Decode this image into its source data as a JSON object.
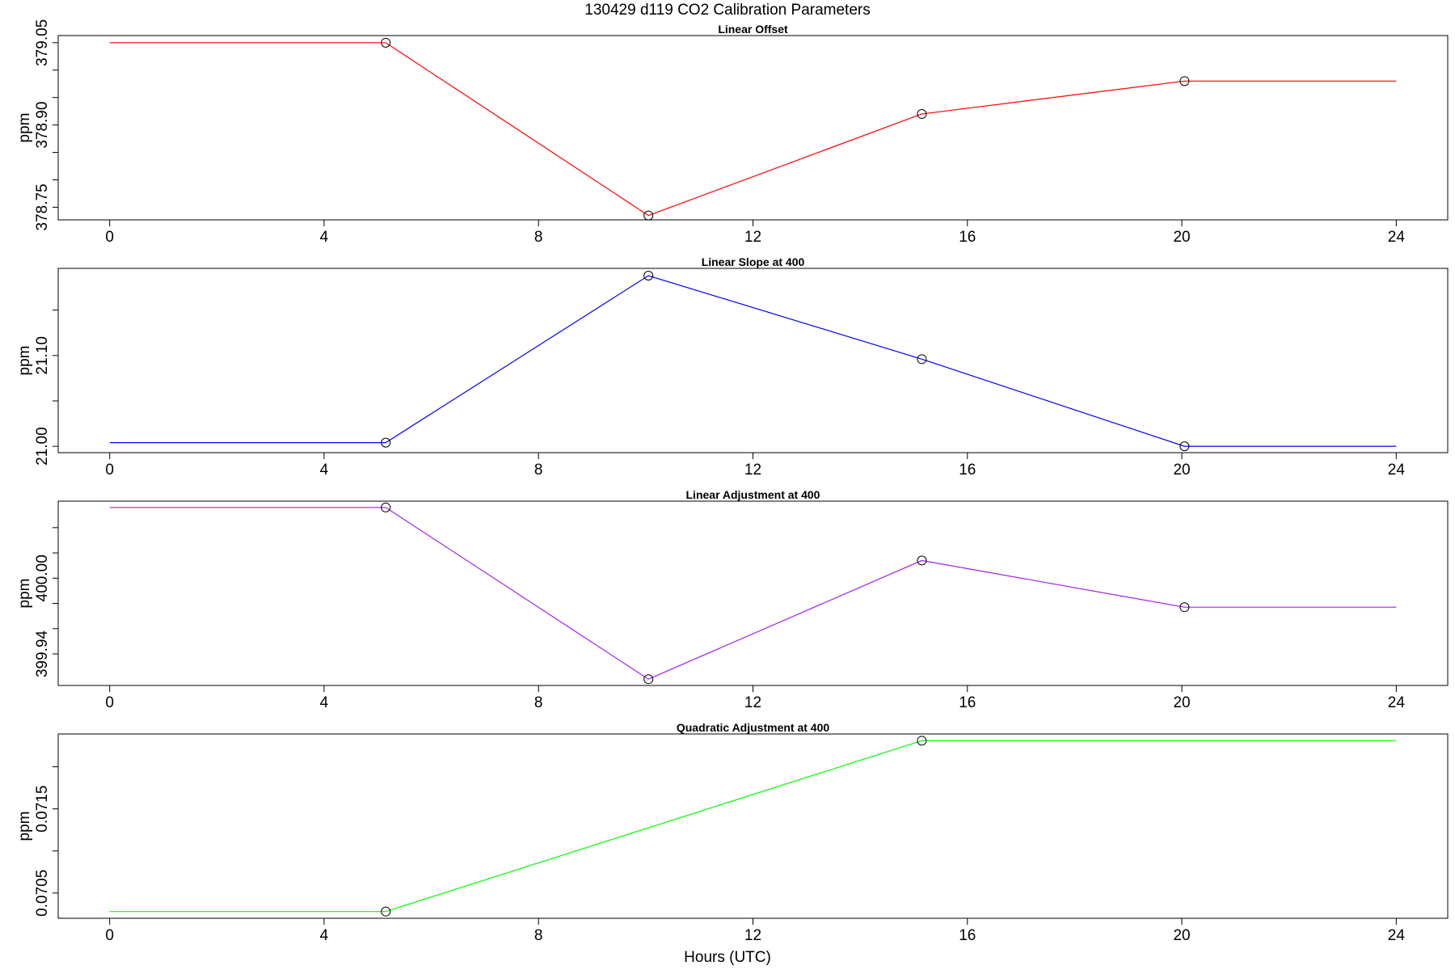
{
  "figure": {
    "title": "130429   d119   CO2 Calibration Parameters",
    "xlabel": "Hours (UTC)"
  },
  "chart_data": [
    {
      "type": "line",
      "title": "Linear Offset",
      "ylabel": "ppm",
      "color": "#ff0000",
      "x": [
        0,
        5.15,
        10.05,
        15.15,
        20.05,
        24
      ],
      "y": [
        379.05,
        379.05,
        378.735,
        378.92,
        378.98,
        378.98
      ],
      "markers": [
        false,
        true,
        true,
        true,
        true,
        false
      ],
      "xlim": [
        -0.96,
        24.96
      ],
      "ylim": [
        378.727,
        379.063
      ],
      "xticks": [
        0,
        4,
        8,
        12,
        16,
        20,
        24
      ],
      "xtick_labels": [
        "0",
        "4",
        "8",
        "12",
        "16",
        "20",
        "24"
      ],
      "yticks": [
        378.75,
        378.8,
        378.85,
        378.9,
        378.95,
        379.0,
        379.05
      ],
      "ytick_labels": [
        "378.75",
        "",
        "",
        "378.90",
        "",
        "",
        "379.05"
      ]
    },
    {
      "type": "line",
      "title": "Linear Slope at 400",
      "ylabel": "ppm",
      "color": "#0000ff",
      "x": [
        0,
        5.15,
        10.05,
        15.15,
        20.05,
        24
      ],
      "y": [
        21.004,
        21.004,
        21.188,
        21.096,
        21.0,
        21.0
      ],
      "markers": [
        false,
        true,
        true,
        true,
        true,
        false
      ],
      "xlim": [
        -0.96,
        24.96
      ],
      "ylim": [
        20.993,
        21.196
      ],
      "xticks": [
        0,
        4,
        8,
        12,
        16,
        20,
        24
      ],
      "xtick_labels": [
        "0",
        "4",
        "8",
        "12",
        "16",
        "20",
        "24"
      ],
      "yticks": [
        21.0,
        21.05,
        21.1,
        21.15
      ],
      "ytick_labels": [
        "21.00",
        "",
        "21.10",
        ""
      ]
    },
    {
      "type": "line",
      "title": "Linear Adjustment at 400",
      "ylabel": "ppm",
      "color": "#a020f0",
      "x": [
        0,
        5.15,
        10.05,
        15.15,
        20.05,
        24
      ],
      "y": [
        400.056,
        400.056,
        399.92,
        400.014,
        399.977,
        399.977
      ],
      "markers": [
        false,
        true,
        true,
        true,
        true,
        false
      ],
      "xlim": [
        -0.96,
        24.96
      ],
      "ylim": [
        399.915,
        400.061
      ],
      "xticks": [
        0,
        4,
        8,
        12,
        16,
        20,
        24
      ],
      "xtick_labels": [
        "0",
        "4",
        "8",
        "12",
        "16",
        "20",
        "24"
      ],
      "yticks": [
        399.94,
        399.96,
        399.98,
        400.0,
        400.02,
        400.04
      ],
      "ytick_labels": [
        "399.94",
        "",
        "",
        "400.00",
        "",
        ""
      ]
    },
    {
      "type": "line",
      "title": "Quadratic Adjustment at 400",
      "ylabel": "ppm",
      "color": "#00ff00",
      "x": [
        0,
        5.15,
        15.15,
        24
      ],
      "y": [
        0.07028,
        0.07028,
        0.07231,
        0.07231
      ],
      "markers": [
        false,
        true,
        true,
        false
      ],
      "xlim": [
        -0.96,
        24.96
      ],
      "ylim": [
        0.0702,
        0.07239
      ],
      "xticks": [
        0,
        4,
        8,
        12,
        16,
        20,
        24
      ],
      "xtick_labels": [
        "0",
        "4",
        "8",
        "12",
        "16",
        "20",
        "24"
      ],
      "yticks": [
        0.0705,
        0.071,
        0.0715,
        0.072
      ],
      "ytick_labels": [
        "0.0705",
        "",
        "0.0715",
        ""
      ]
    }
  ]
}
